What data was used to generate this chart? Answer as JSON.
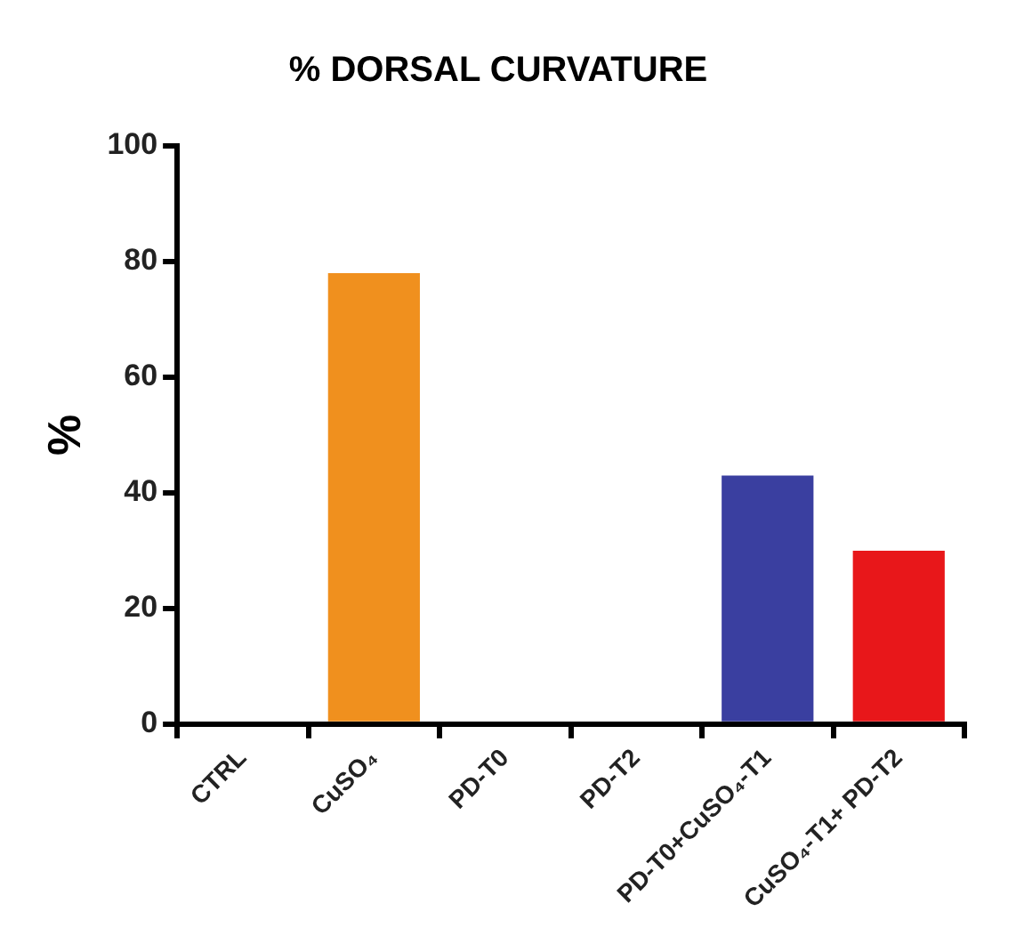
{
  "chart_data": {
    "type": "bar",
    "title": "% DORSAL CURVATURE",
    "ylabel": "%",
    "categories": [
      "CTRL",
      "CuSO₄",
      "PD-T0",
      "PD-T2",
      "PD-T0+CuSO₄-T1",
      "CuSO₄-T1+ PD-T2"
    ],
    "values": [
      0,
      78,
      0,
      0,
      43,
      30
    ],
    "colors": [
      "#f0901e",
      "#f0901e",
      "#3a3fa0",
      "#3a3fa0",
      "#3a3fa0",
      "#e8171a"
    ],
    "ylim": [
      0,
      100
    ],
    "yticks": [
      0,
      20,
      40,
      60,
      80,
      100
    ],
    "grid": false,
    "legend": false
  }
}
